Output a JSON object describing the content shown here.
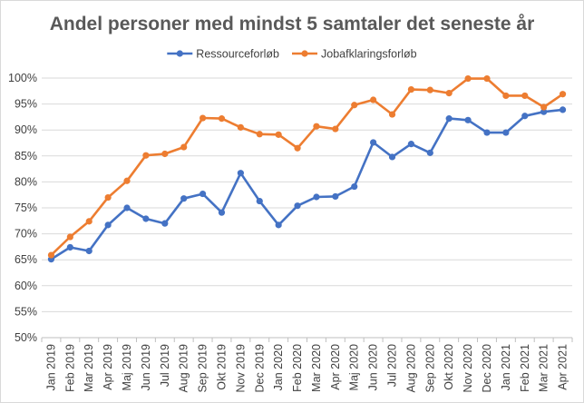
{
  "chart_data": {
    "type": "line",
    "title": "Andel personer med mindst 5 samtaler det seneste år",
    "xlabel": "",
    "ylabel": "",
    "ylim": [
      50,
      100
    ],
    "yticks": [
      50,
      55,
      60,
      65,
      70,
      75,
      80,
      85,
      90,
      95,
      100
    ],
    "ytick_labels": [
      "50%",
      "55%",
      "60%",
      "65%",
      "70%",
      "75%",
      "80%",
      "85%",
      "90%",
      "95%",
      "100%"
    ],
    "grid": true,
    "legend_position": "top",
    "categories": [
      "Jan 2019",
      "Feb 2019",
      "Mar 2019",
      "Apr 2019",
      "Maj 2019",
      "Jun 2019",
      "Jul 2019",
      "Aug 2019",
      "Sep 2019",
      "Okt 2019",
      "Nov 2019",
      "Dec 2019",
      "Jan 2020",
      "Feb 2020",
      "Mar 2020",
      "Apr 2020",
      "Maj 2020",
      "Jun 2020",
      "Jul 2020",
      "Aug 2020",
      "Sep 2020",
      "Okt 2020",
      "Nov 2020",
      "Dec 2020",
      "Jan 2021",
      "Feb 2021",
      "Mar 2021",
      "Apr 2021"
    ],
    "series": [
      {
        "name": "Ressourceforløb",
        "color": "#4472c4",
        "values": [
          65.1,
          67.4,
          66.7,
          71.7,
          75.0,
          72.9,
          72.0,
          76.8,
          77.7,
          74.1,
          81.7,
          76.3,
          71.7,
          75.4,
          77.1,
          77.2,
          79.1,
          87.6,
          84.8,
          87.3,
          85.6,
          92.2,
          91.9,
          89.5,
          89.5,
          92.7,
          93.5,
          93.9
        ]
      },
      {
        "name": "Jobafklaringsforløb",
        "color": "#ed7d31",
        "values": [
          65.9,
          69.4,
          72.4,
          77.0,
          80.2,
          85.1,
          85.4,
          86.7,
          92.3,
          92.2,
          90.5,
          89.2,
          89.1,
          86.5,
          90.7,
          90.2,
          94.8,
          95.8,
          93.0,
          97.8,
          97.7,
          97.1,
          99.9,
          99.9,
          96.6,
          96.6,
          94.4,
          96.9
        ]
      }
    ]
  }
}
